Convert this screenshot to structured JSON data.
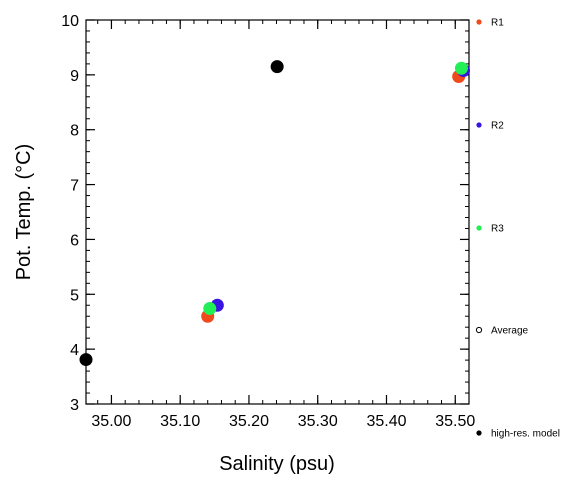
{
  "chart_data": {
    "type": "scatter",
    "xlabel": "Salinity (psu)",
    "ylabel": "Pot. Temp. (°C)",
    "xlim": [
      34.963,
      35.52
    ],
    "ylim": [
      3,
      10
    ],
    "xticks": [
      35.0,
      35.1,
      35.2,
      35.3,
      35.4,
      35.5
    ],
    "xtick_labels": [
      "35.00",
      "35.10",
      "35.20",
      "35.30",
      "35.40",
      "35.50"
    ],
    "yticks": [
      3,
      4,
      5,
      6,
      7,
      8,
      9,
      10
    ],
    "ytick_labels": [
      "3",
      "4",
      "5",
      "6",
      "7",
      "8",
      "9",
      "10"
    ],
    "grid": false,
    "legend_position": "right",
    "series": [
      {
        "name": "R1",
        "color": "#f04a1c",
        "marker": "filled-circle",
        "points": [
          {
            "x": 35.14,
            "y": 4.6
          },
          {
            "x": 35.505,
            "y": 8.97
          }
        ]
      },
      {
        "name": "R2",
        "color": "#3a14e0",
        "marker": "filled-circle",
        "points": [
          {
            "x": 35.154,
            "y": 4.8
          },
          {
            "x": 35.512,
            "y": 9.08
          }
        ]
      },
      {
        "name": "R3",
        "color": "#22ee55",
        "marker": "filled-circle",
        "points": [
          {
            "x": 35.143,
            "y": 4.74
          },
          {
            "x": 35.509,
            "y": 9.12
          }
        ]
      },
      {
        "name": "Average",
        "color": "#000000",
        "marker": "open-circle",
        "points": []
      },
      {
        "name": "high-res. model",
        "color": "#000000",
        "marker": "filled-circle",
        "points": [
          {
            "x": 34.963,
            "y": 3.81
          },
          {
            "x": 35.241,
            "y": 9.15
          }
        ]
      }
    ]
  }
}
